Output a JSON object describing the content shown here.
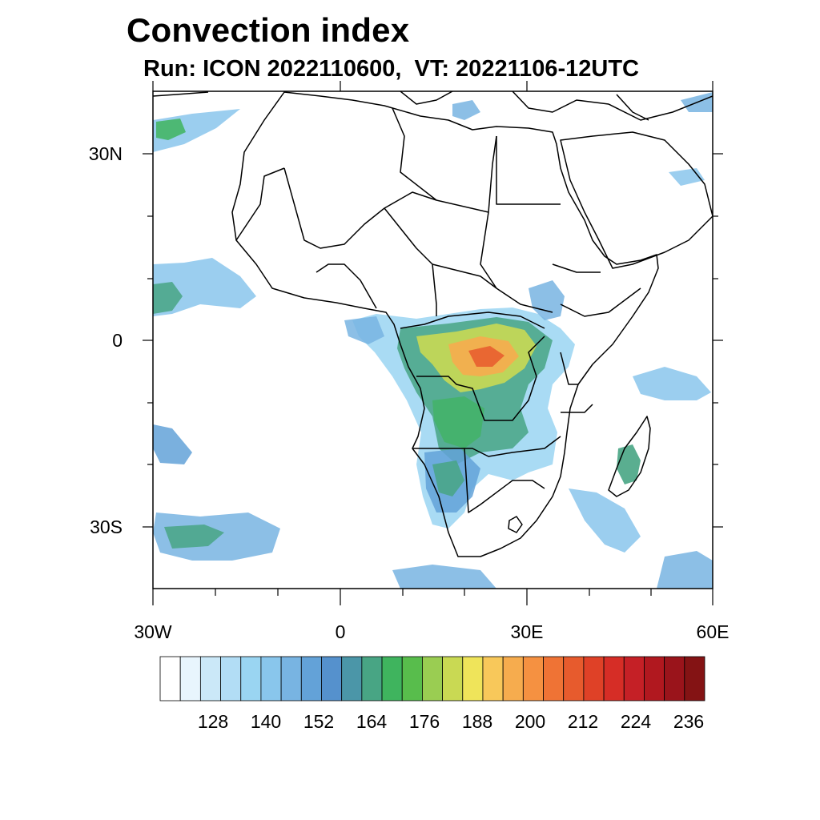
{
  "title": "Convection index",
  "subtitle": "Run: ICON 2022110600,  VT: 20221106-12UTC",
  "map": {
    "region": "Africa",
    "lon_range": [
      -30,
      60
    ],
    "lat_range": [
      -40,
      40
    ],
    "lat_labels": [
      "30N",
      "0",
      "30S"
    ],
    "lon_labels": [
      "30W",
      "0",
      "30E",
      "60E"
    ],
    "ocean_color": "#ffffff",
    "border_color": "#000000"
  },
  "colorbar": {
    "labels": [
      "128",
      "140",
      "152",
      "164",
      "176",
      "188",
      "200",
      "212",
      "224",
      "236"
    ],
    "colors": [
      "#ffffff",
      "#e8f5fd",
      "#cbe8f8",
      "#b2ddf5",
      "#9ad5f2",
      "#89c6ec",
      "#78b4e2",
      "#63a2d8",
      "#5591cd",
      "#4b96a8",
      "#48a584",
      "#3fb45e",
      "#58bd4c",
      "#9acd52",
      "#c9d953",
      "#efe45a",
      "#f8c85a",
      "#f6ac4e",
      "#f59141",
      "#ef7335",
      "#e75b2d",
      "#df4127",
      "#d62d26",
      "#c52026",
      "#b1181f",
      "#9a141b",
      "#841314"
    ]
  }
}
